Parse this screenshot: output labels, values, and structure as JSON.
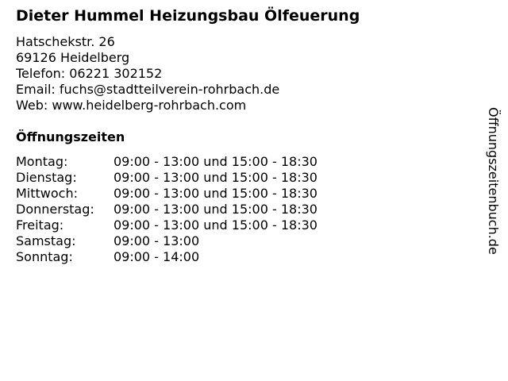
{
  "business": {
    "name": "Dieter Hummel Heizungsbau Ölfeuerung",
    "street": "Hatschekstr. 26",
    "city": "69126 Heidelberg",
    "phone": "Telefon: 06221 302152",
    "email": "Email: fuchs@stadtteilverein-rohrbach.de",
    "web": "Web: www.heidelberg-rohrbach.com"
  },
  "hours": {
    "heading": "Öffnungszeiten",
    "rows": [
      {
        "day": "Montag:",
        "time": "09:00 - 13:00 und 15:00 - 18:30"
      },
      {
        "day": "Dienstag:",
        "time": "09:00 - 13:00 und 15:00 - 18:30"
      },
      {
        "day": "Mittwoch:",
        "time": "09:00 - 13:00 und 15:00 - 18:30"
      },
      {
        "day": "Donnerstag:",
        "time": "09:00 - 13:00 und 15:00 - 18:30"
      },
      {
        "day": "Freitag:",
        "time": "09:00 - 13:00 und 15:00 - 18:30"
      },
      {
        "day": "Samstag:",
        "time": "09:00 - 13:00"
      },
      {
        "day": "Sonntag:",
        "time": "09:00 - 14:00"
      }
    ]
  },
  "watermark": "Öffnungszeitenbuch.de"
}
